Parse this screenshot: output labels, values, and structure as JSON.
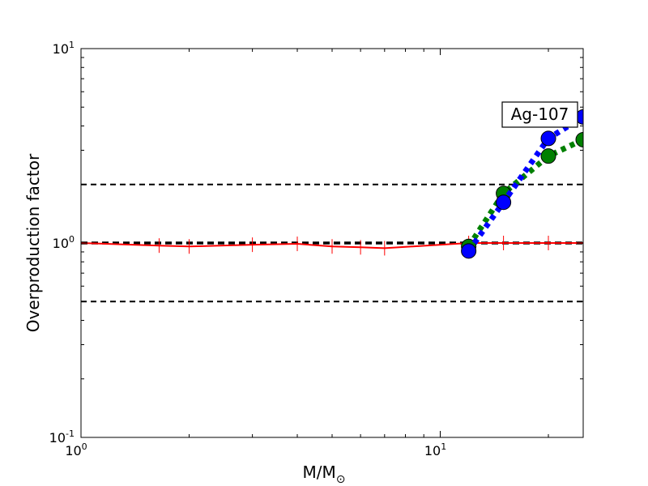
{
  "chart_data": {
    "type": "line",
    "title": "",
    "xlabel": "M/M",
    "xlabel_sub": "⊙",
    "ylabel": "Overproduction factor",
    "xscale": "log",
    "yscale": "log",
    "xlim": [
      1,
      25
    ],
    "ylim": [
      0.1,
      10
    ],
    "xticks": [
      {
        "value": 1,
        "base": "10",
        "exp": "0"
      },
      {
        "value": 10,
        "base": "10",
        "exp": "1"
      }
    ],
    "yticks": [
      {
        "value": 0.1,
        "base": "10",
        "exp": "-1"
      },
      {
        "value": 1,
        "base": "10",
        "exp": "0"
      },
      {
        "value": 10,
        "base": "10",
        "exp": "1"
      }
    ],
    "reference_lines": [
      0.5,
      1,
      2
    ],
    "annotation": "Ag-107",
    "grid": false,
    "series": [
      {
        "color": "#ff0000",
        "style": "solid",
        "marker": "vline",
        "x": [
          1,
          1.65,
          2,
          3,
          4,
          5,
          6,
          7,
          12,
          15,
          20,
          25
        ],
        "y": [
          1.0,
          0.97,
          0.96,
          0.98,
          0.99,
          0.96,
          0.95,
          0.94,
          1.0,
          1.0,
          1.0,
          1.0
        ]
      },
      {
        "color": "#008000",
        "style": "dotted",
        "marker": "circle",
        "x": [
          12,
          15,
          20,
          25
        ],
        "y": [
          0.96,
          1.8,
          2.8,
          3.4
        ]
      },
      {
        "color": "#0000ff",
        "style": "dotted",
        "marker": "circle",
        "x": [
          12,
          15,
          20,
          25
        ],
        "y": [
          0.91,
          1.62,
          3.45,
          4.45
        ]
      }
    ]
  }
}
